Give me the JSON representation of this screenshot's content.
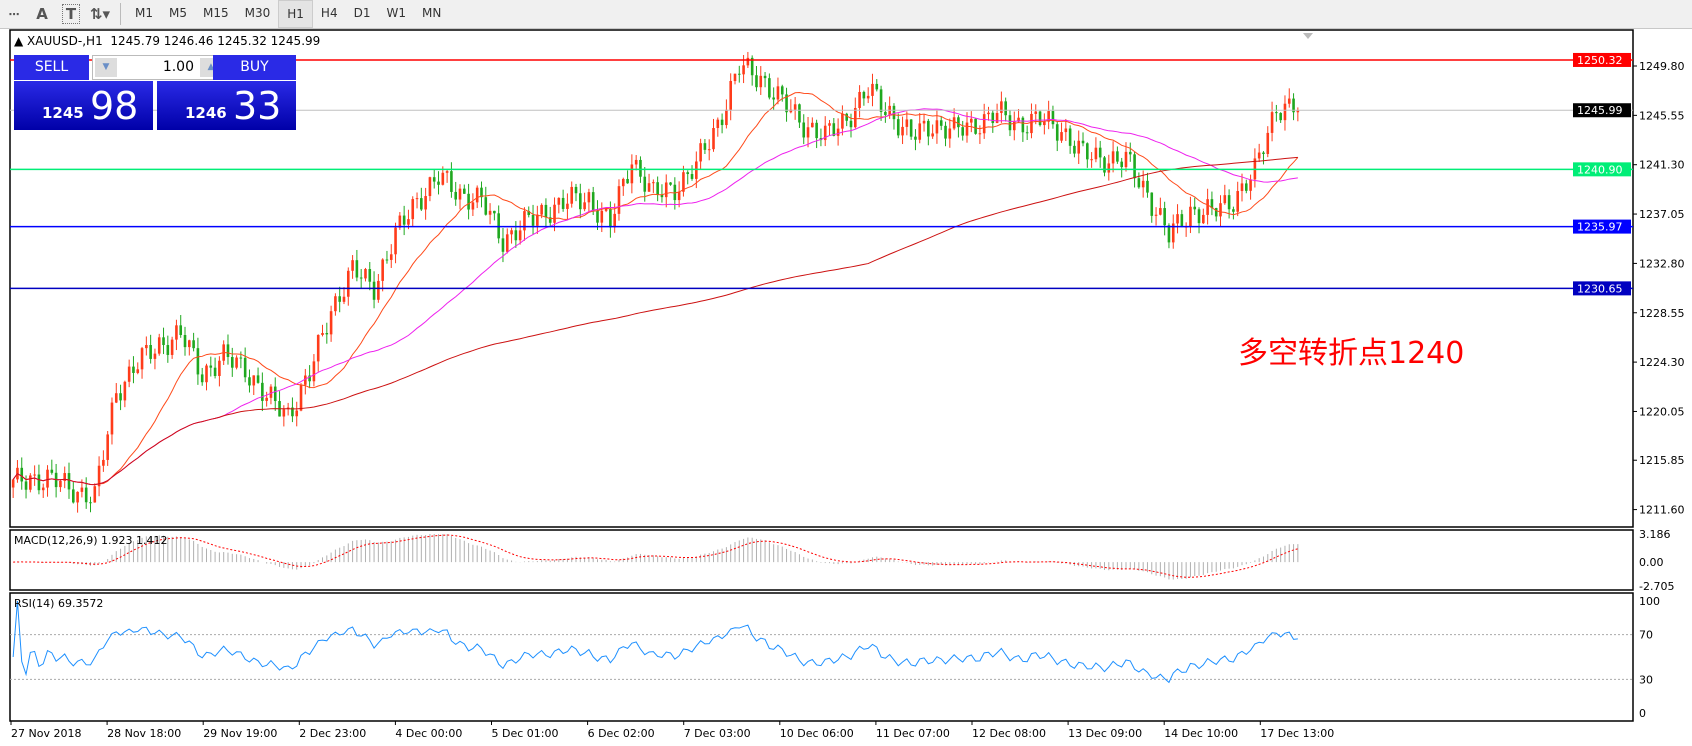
{
  "toolbar": {
    "icons": [
      "crosshair-icon",
      "text-icon",
      "text-label-icon",
      "arrows-icon"
    ],
    "text_icon": "A",
    "label_icon": "T",
    "timeframes": [
      "M1",
      "M5",
      "M15",
      "M30",
      "H1",
      "H4",
      "D1",
      "W1",
      "MN"
    ],
    "active_timeframe": "H1"
  },
  "header": {
    "symbol": "XAUUSD-,H1",
    "ohlc": "1245.79 1246.46 1245.32 1245.99"
  },
  "trade_panel": {
    "sell_label": "SELL",
    "buy_label": "BUY",
    "lot": "1.00",
    "sell_small": "1245",
    "sell_big": "98",
    "buy_small": "1246",
    "buy_big": "33"
  },
  "annotation": "多空转折点1240",
  "colors": {
    "bull": "#ff3b1a",
    "bear": "#1fa81f",
    "ma_fast": "#ff4a1a",
    "ma_mid": "#ee22ee",
    "ma_slow": "#cc1111",
    "rsi": "#1e90ff",
    "macd_signal": "#ff0000"
  },
  "chart_data": {
    "type": "candlestick",
    "y_ticks": [
      "1249.80",
      "1245.55",
      "1241.30",
      "1237.05",
      "1232.80",
      "1228.55",
      "1224.30",
      "1220.05",
      "1215.85",
      "1211.60"
    ],
    "ylim": [
      1210.1,
      1252.9
    ],
    "x_ticks": [
      "27 Nov 2018",
      "28 Nov 18:00",
      "29 Nov 19:00",
      "2 Dec 23:00",
      "4 Dec 00:00",
      "5 Dec 01:00",
      "6 Dec 02:00",
      "7 Dec 03:00",
      "10 Dec 06:00",
      "11 Dec 07:00",
      "12 Dec 08:00",
      "13 Dec 09:00",
      "14 Dec 10:00",
      "17 Dec 13:00"
    ],
    "closes": [
      1213.5,
      1214.5,
      1214,
      1213.5,
      1212.5,
      1222,
      1224,
      1226,
      1226.5,
      1223.5,
      1224.5,
      1224,
      1221,
      1220,
      1223,
      1229,
      1232,
      1231,
      1235,
      1238.5,
      1240,
      1239,
      1238,
      1235,
      1236,
      1237.5,
      1238,
      1238.5,
      1236,
      1242,
      1238.5,
      1239.5,
      1241,
      1245,
      1249.5,
      1249,
      1246.5,
      1245,
      1243.5,
      1245.5,
      1247.5,
      1246,
      1243.5,
      1245,
      1244,
      1245,
      1245.5,
      1245,
      1245,
      1244.5,
      1242,
      1242,
      1241.5,
      1239,
      1235,
      1237.5,
      1237,
      1238.5,
      1240.5,
      1246.5,
      1246
    ],
    "levels": [
      {
        "value": "1250.32",
        "color": "#ff0000"
      },
      {
        "value": "1245.99",
        "color": "#000000",
        "line": "#c0c0c0"
      },
      {
        "value": "1240.90",
        "color": "#00ee77"
      },
      {
        "value": "1235.97",
        "color": "#0000ff"
      },
      {
        "value": "1230.65",
        "color": "#0000c0"
      }
    ],
    "moving_averages": [
      "fast",
      "mid",
      "slow"
    ],
    "macd": {
      "label": "MACD(12,26,9) 1.923 1.412",
      "ticks": [
        "3.186",
        "0.00",
        "-2.705"
      ],
      "ylim": [
        -2.705,
        3.186
      ]
    },
    "rsi": {
      "label": "RSI(14) 69.3572",
      "ticks": [
        "100",
        "70",
        "30",
        "0"
      ],
      "ylim": [
        0,
        100
      ],
      "levels": [
        70,
        30
      ]
    }
  }
}
